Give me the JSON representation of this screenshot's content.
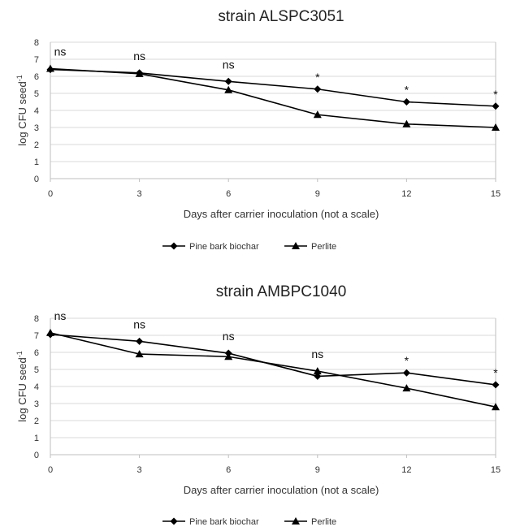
{
  "chart_data": [
    {
      "type": "line",
      "title": "strain ALSPC3051",
      "xlabel": "Days after carrier inoculation (not a scale)",
      "ylabel": "log CFU seed",
      "ylabel_sup": "-1",
      "x": [
        0,
        3,
        6,
        9,
        12,
        15
      ],
      "ylim": [
        0,
        8
      ],
      "yticks": [
        0,
        1,
        2,
        3,
        4,
        5,
        6,
        7,
        8
      ],
      "grid": true,
      "legend": "bottom",
      "significance": [
        "ns",
        "ns",
        "ns",
        "*",
        "*",
        "*"
      ],
      "series": [
        {
          "name": "Pine bark biochar",
          "marker": "diamond",
          "values": [
            6.4,
            6.2,
            5.7,
            5.25,
            4.5,
            4.25
          ]
        },
        {
          "name": "Perlite",
          "marker": "triangle",
          "values": [
            6.45,
            6.15,
            5.2,
            3.75,
            3.2,
            3.0
          ]
        }
      ]
    },
    {
      "type": "line",
      "title": "strain AMBPC1040",
      "xlabel": "Days after carrier inoculation (not a scale)",
      "ylabel": "log CFU seed",
      "ylabel_sup": "-1",
      "x": [
        0,
        3,
        6,
        9,
        12,
        15
      ],
      "ylim": [
        0,
        8
      ],
      "yticks": [
        0,
        1,
        2,
        3,
        4,
        5,
        6,
        7,
        8
      ],
      "grid": true,
      "legend": "bottom",
      "significance": [
        "ns",
        "ns",
        "ns",
        "ns",
        "*",
        "*"
      ],
      "series": [
        {
          "name": "Pine bark biochar",
          "marker": "diamond",
          "values": [
            7.05,
            6.65,
            5.95,
            4.6,
            4.8,
            4.1
          ]
        },
        {
          "name": "Perlite",
          "marker": "triangle",
          "values": [
            7.15,
            5.9,
            5.75,
            4.9,
            3.9,
            2.8
          ]
        }
      ]
    }
  ],
  "colors": {
    "line": "#000000",
    "grid": "#d9d9d9",
    "axis": "#bfbfbf"
  }
}
